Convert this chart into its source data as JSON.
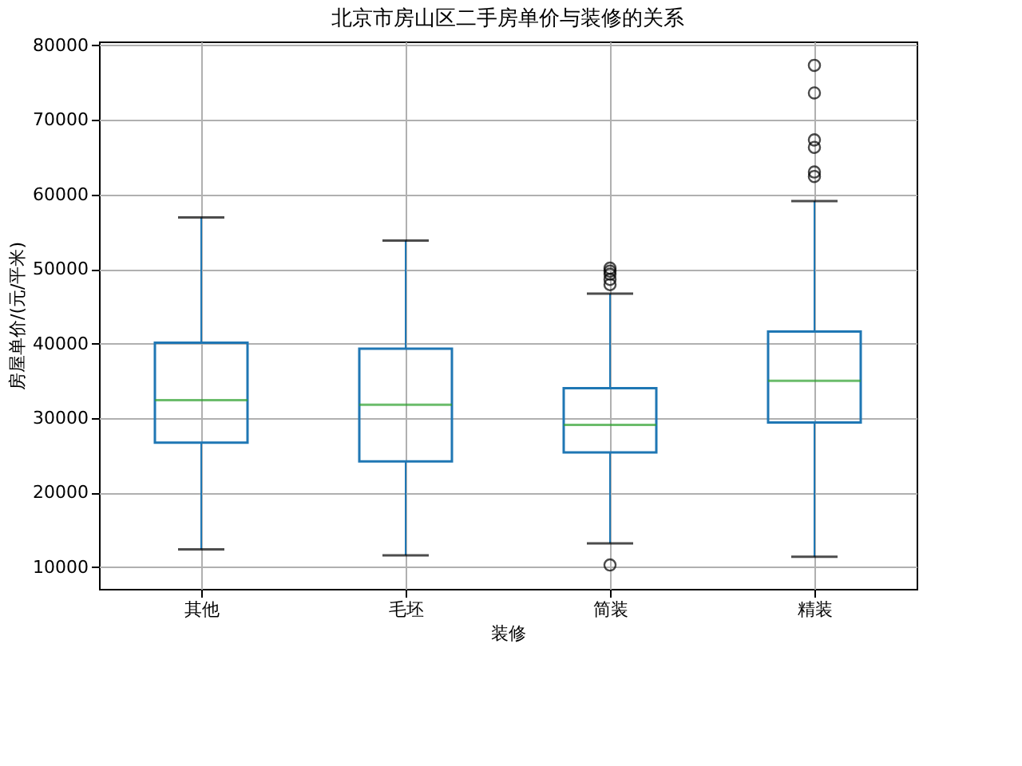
{
  "chart_data": {
    "type": "box",
    "title": "北京市房山区二手房单价与装修的关系",
    "xlabel": "装修",
    "ylabel": "房屋单价/(元/平米)",
    "categories": [
      "其他",
      "毛坯",
      "简装",
      "精装"
    ],
    "boxes": [
      {
        "low": 12400,
        "q1": 26700,
        "median": 32400,
        "q3": 40100,
        "high": 56900
      },
      {
        "low": 11600,
        "q1": 24200,
        "median": 31800,
        "q3": 39300,
        "high": 53800
      },
      {
        "low": 13200,
        "q1": 25400,
        "median": 29100,
        "q3": 34000,
        "high": 46700,
        "outliers": [
          10300,
          47900,
          48600,
          49300,
          49700,
          50100
        ]
      },
      {
        "low": 11400,
        "q1": 29400,
        "median": 35000,
        "q3": 41600,
        "high": 59100,
        "outliers": [
          62400,
          63000,
          66300,
          67300,
          73600,
          77300
        ]
      }
    ],
    "ylim": [
      7100,
      80500
    ],
    "yticks": [
      10000,
      20000,
      30000,
      40000,
      50000,
      60000,
      70000,
      80000
    ],
    "grid": true,
    "marker": "circle"
  }
}
